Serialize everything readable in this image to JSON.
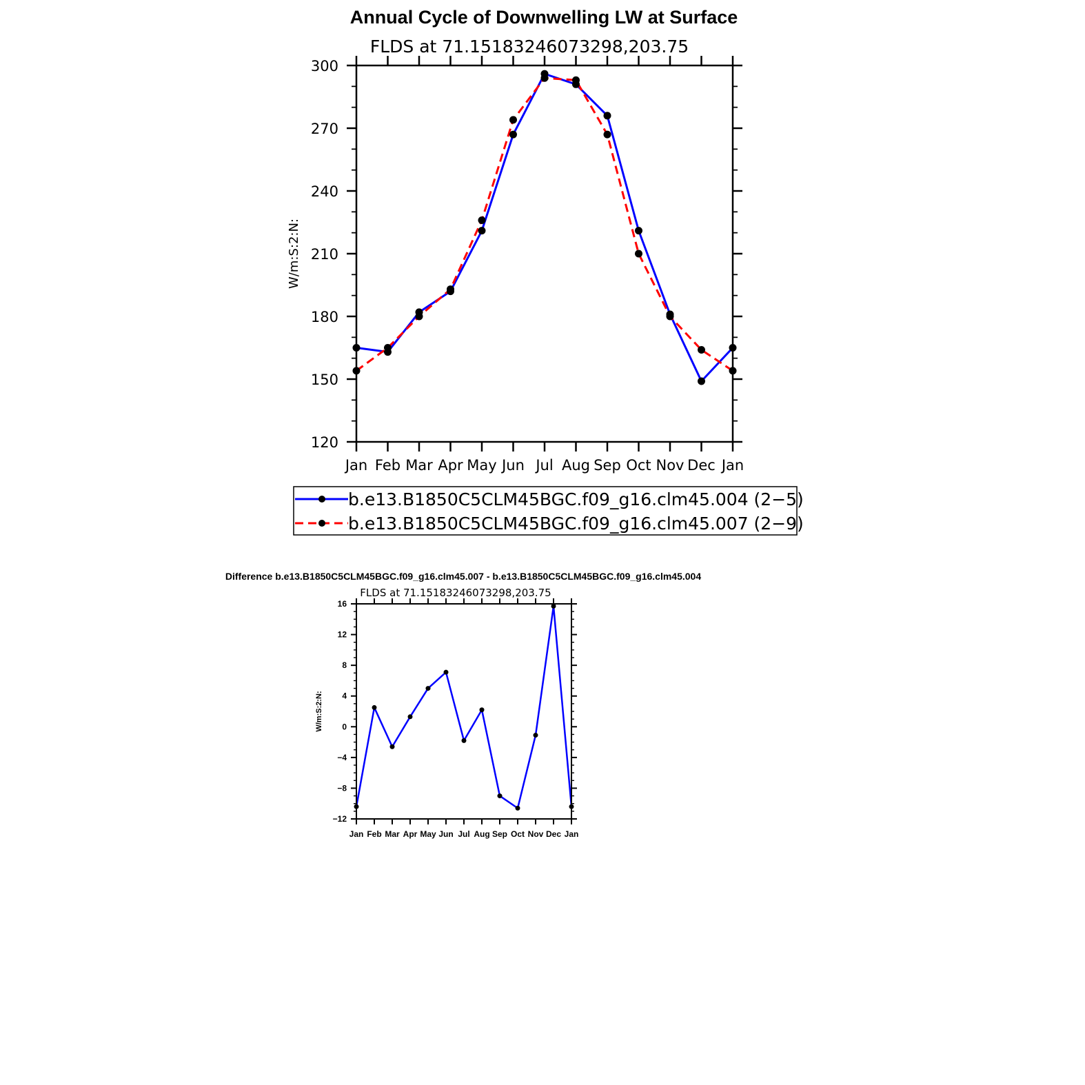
{
  "chart_data": [
    {
      "type": "line",
      "title": "Annual Cycle of Downwelling LW at Surface",
      "subtitle": "FLDS at 71.15183246073298,203.75",
      "xlabel": "",
      "ylabel": "W/m:S:2:N:",
      "categories": [
        "Jan",
        "Feb",
        "Mar",
        "Apr",
        "May",
        "Jun",
        "Jul",
        "Aug",
        "Sep",
        "Oct",
        "Nov",
        "Dec",
        "Jan"
      ],
      "ylim": [
        120,
        300
      ],
      "yticks": [
        "120",
        "150",
        "180",
        "210",
        "240",
        "270",
        "300"
      ],
      "grid": false,
      "legend_position": "bottom",
      "series": [
        {
          "name": "b.e13.B1850C5CLM45BGC.f09_g16.clm45.004 (2−5)",
          "color": "#0000ff",
          "dash": "solid",
          "values": [
            165,
            163,
            182,
            192,
            221,
            267,
            296,
            291,
            276,
            221,
            181,
            149,
            165
          ]
        },
        {
          "name": "b.e13.B1850C5CLM45BGC.f09_g16.clm45.007 (2−9)",
          "color": "#ff0000",
          "dash": "dashed",
          "values": [
            154,
            165,
            180,
            193,
            226,
            274,
            294,
            293,
            267,
            210,
            180,
            164,
            154
          ]
        }
      ]
    },
    {
      "type": "line",
      "title": "Difference b.e13.B1850C5CLM45BGC.f09_g16.clm45.007 - b.e13.B1850C5CLM45BGC.f09_g16.clm45.004",
      "subtitle": "FLDS at 71.15183246073298,203.75",
      "xlabel": "",
      "ylabel": "W/m:S:2:N:",
      "categories": [
        "Jan",
        "Feb",
        "Mar",
        "Apr",
        "May",
        "Jun",
        "Jul",
        "Aug",
        "Sep",
        "Oct",
        "Nov",
        "Dec",
        "Jan"
      ],
      "ylim": [
        -12,
        16
      ],
      "yticks": [
        "−12",
        "−8",
        "−4",
        "0",
        "4",
        "8",
        "12",
        "16"
      ],
      "grid": false,
      "series": [
        {
          "color": "#0000ff",
          "dash": "solid",
          "values": [
            -10.4,
            2.5,
            -2.6,
            1.3,
            5.0,
            7.1,
            -1.8,
            2.2,
            -9.0,
            -10.6,
            -1.1,
            15.7,
            -10.4
          ]
        }
      ]
    }
  ]
}
